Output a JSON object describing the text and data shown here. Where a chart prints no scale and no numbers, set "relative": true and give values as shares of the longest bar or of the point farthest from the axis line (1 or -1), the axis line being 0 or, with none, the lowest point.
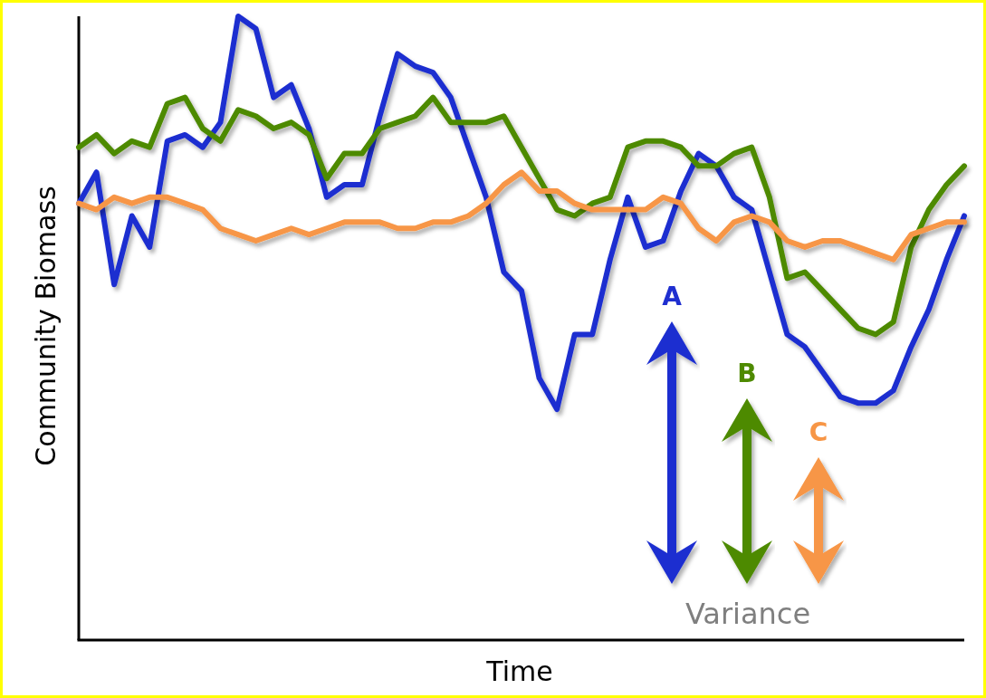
{
  "chart_data": {
    "type": "line",
    "relative": true,
    "xlabel": "Time",
    "ylabel": "Community Biomass",
    "marker": "none",
    "line_style": "solid",
    "categories": [
      null,
      null,
      null,
      null,
      null,
      null,
      null,
      null,
      null,
      null,
      null,
      null,
      null,
      null,
      null,
      null,
      null,
      null,
      null,
      null,
      null,
      null,
      null,
      null,
      null,
      null,
      null,
      null,
      null,
      null,
      null,
      null,
      null,
      null,
      null,
      null,
      null,
      null,
      null,
      null,
      null,
      null,
      null,
      null,
      null,
      null,
      null,
      null,
      null,
      null,
      null
    ],
    "series": [
      {
        "color": "#1f2fd0",
        "values": [
          0.7,
          0.75,
          0.57,
          0.68,
          0.63,
          0.8,
          0.81,
          0.79,
          0.83,
          1.0,
          0.98,
          0.87,
          0.89,
          0.82,
          0.71,
          0.73,
          0.73,
          0.84,
          0.94,
          0.92,
          0.91,
          0.87,
          0.79,
          0.71,
          0.59,
          0.56,
          0.42,
          0.37,
          0.49,
          0.49,
          0.61,
          0.71,
          0.63,
          0.64,
          0.72,
          0.78,
          0.76,
          0.71,
          0.69,
          0.59,
          0.49,
          0.47,
          0.43,
          0.39,
          0.38,
          0.38,
          0.4,
          0.47,
          0.53,
          0.61,
          0.68
        ]
      },
      {
        "color": "#4e8a00",
        "values": [
          0.79,
          0.81,
          0.78,
          0.8,
          0.79,
          0.86,
          0.87,
          0.82,
          0.8,
          0.85,
          0.84,
          0.82,
          0.83,
          0.81,
          0.74,
          0.78,
          0.78,
          0.82,
          0.83,
          0.84,
          0.87,
          0.83,
          0.83,
          0.83,
          0.84,
          0.79,
          0.74,
          0.69,
          0.68,
          0.7,
          0.71,
          0.79,
          0.8,
          0.8,
          0.79,
          0.76,
          0.76,
          0.78,
          0.79,
          0.71,
          0.58,
          0.59,
          0.56,
          0.53,
          0.5,
          0.49,
          0.51,
          0.63,
          0.69,
          0.73,
          0.76
        ]
      },
      {
        "color": "#f79646",
        "values": [
          0.7,
          0.69,
          0.71,
          0.7,
          0.71,
          0.71,
          0.7,
          0.69,
          0.66,
          0.65,
          0.64,
          0.65,
          0.66,
          0.65,
          0.66,
          0.67,
          0.67,
          0.67,
          0.66,
          0.66,
          0.67,
          0.67,
          0.68,
          0.7,
          0.73,
          0.75,
          0.72,
          0.72,
          0.7,
          0.69,
          0.69,
          0.69,
          0.69,
          0.71,
          0.7,
          0.66,
          0.64,
          0.67,
          0.68,
          0.67,
          0.64,
          0.63,
          0.64,
          0.64,
          0.63,
          0.62,
          0.61,
          0.65,
          0.66,
          0.67,
          0.67
        ]
      }
    ],
    "annotations": [
      "A",
      "B",
      "C",
      "Variance"
    ]
  }
}
